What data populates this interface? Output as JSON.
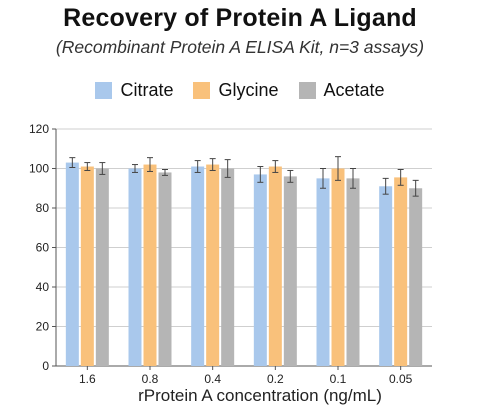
{
  "chart_data": {
    "type": "bar",
    "title": "Recovery of Protein A Ligand",
    "subtitle": "(Recombinant Protein A ELISA Kit, n=3 assays)",
    "xlabel": "rProtein A concentration (ng/mL)",
    "ylabel": "",
    "ylim": [
      0,
      120
    ],
    "yticks": [
      "0",
      "20",
      "40",
      "60",
      "80",
      "100",
      "120"
    ],
    "categories": [
      "1.6",
      "0.8",
      "0.4",
      "0.2",
      "0.1",
      "0.05"
    ],
    "grid": true,
    "legend_position": "top",
    "series": [
      {
        "name": "Citrate",
        "color": "#a9c8ec",
        "values": [
          103,
          100,
          101,
          97,
          95,
          91
        ],
        "errors": [
          2.5,
          2,
          3,
          4,
          5,
          4
        ]
      },
      {
        "name": "Glycine",
        "color": "#f9c17b",
        "values": [
          101,
          102,
          102,
          101,
          100,
          95.5
        ],
        "errors": [
          2,
          3.5,
          3,
          3,
          6,
          4
        ]
      },
      {
        "name": "Acetate",
        "color": "#b5b5b5",
        "values": [
          100,
          98,
          100,
          96,
          95,
          90
        ],
        "errors": [
          3,
          1.5,
          4.5,
          3,
          5,
          4
        ]
      }
    ]
  }
}
